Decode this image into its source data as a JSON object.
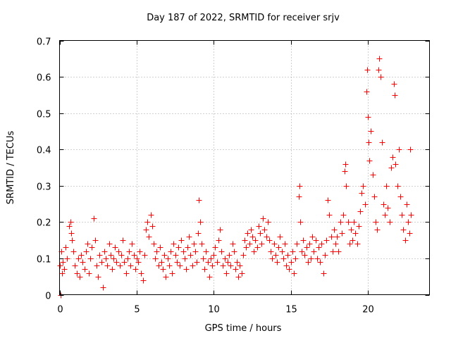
{
  "chart_data": {
    "type": "scatter",
    "title": "Day 187 of 2022, SRMTID for receiver srjv",
    "xlabel": "GPS time / hours",
    "ylabel": "SRMTID / TECUs",
    "xlim": [
      0,
      24
    ],
    "ylim": [
      0,
      0.7
    ],
    "xticks": [
      0,
      5,
      10,
      15,
      20
    ],
    "xtick_labels": [
      "0",
      "5",
      "10",
      "15",
      "20"
    ],
    "yticks": [
      0,
      0.1,
      0.2,
      0.3,
      0.4,
      0.5,
      0.6,
      0.7
    ],
    "ytick_labels": [
      "0",
      "0.1",
      "0.2",
      "0.3",
      "0.4",
      "0.5",
      "0.6",
      "0.7"
    ],
    "grid": true,
    "marker": "+",
    "color": "#ff0000",
    "series": [
      {
        "name": "SRMTID",
        "points": [
          [
            0.0,
            0.08
          ],
          [
            0.05,
            0.0
          ],
          [
            0.1,
            0.12
          ],
          [
            0.15,
            0.06
          ],
          [
            0.2,
            0.09
          ],
          [
            0.3,
            0.07
          ],
          [
            0.4,
            0.13
          ],
          [
            0.5,
            0.1
          ],
          [
            0.6,
            0.19
          ],
          [
            0.7,
            0.2
          ],
          [
            0.75,
            0.17
          ],
          [
            0.8,
            0.15
          ],
          [
            0.9,
            0.12
          ],
          [
            1.0,
            0.08
          ],
          [
            1.1,
            0.06
          ],
          [
            1.2,
            0.1
          ],
          [
            1.3,
            0.05
          ],
          [
            1.4,
            0.11
          ],
          [
            1.5,
            0.09
          ],
          [
            1.6,
            0.07
          ],
          [
            1.7,
            0.12
          ],
          [
            1.8,
            0.14
          ],
          [
            1.9,
            0.06
          ],
          [
            2.0,
            0.1
          ],
          [
            2.1,
            0.13
          ],
          [
            2.2,
            0.21
          ],
          [
            2.3,
            0.15
          ],
          [
            2.4,
            0.08
          ],
          [
            2.5,
            0.05
          ],
          [
            2.6,
            0.11
          ],
          [
            2.7,
            0.09
          ],
          [
            2.8,
            0.02
          ],
          [
            2.9,
            0.12
          ],
          [
            3.0,
            0.1
          ],
          [
            3.1,
            0.08
          ],
          [
            3.2,
            0.14
          ],
          [
            3.3,
            0.11
          ],
          [
            3.4,
            0.07
          ],
          [
            3.5,
            0.1
          ],
          [
            3.6,
            0.13
          ],
          [
            3.7,
            0.09
          ],
          [
            3.8,
            0.12
          ],
          [
            3.9,
            0.08
          ],
          [
            4.0,
            0.11
          ],
          [
            4.1,
            0.15
          ],
          [
            4.2,
            0.09
          ],
          [
            4.3,
            0.06
          ],
          [
            4.4,
            0.1
          ],
          [
            4.5,
            0.12
          ],
          [
            4.6,
            0.08
          ],
          [
            4.7,
            0.14
          ],
          [
            4.8,
            0.11
          ],
          [
            4.9,
            0.07
          ],
          [
            5.0,
            0.1
          ],
          [
            5.1,
            0.09
          ],
          [
            5.2,
            0.12
          ],
          [
            5.3,
            0.06
          ],
          [
            5.4,
            0.04
          ],
          [
            5.5,
            0.11
          ],
          [
            5.6,
            0.18
          ],
          [
            5.7,
            0.2
          ],
          [
            5.8,
            0.16
          ],
          [
            5.9,
            0.22
          ],
          [
            6.0,
            0.19
          ],
          [
            6.1,
            0.14
          ],
          [
            6.2,
            0.1
          ],
          [
            6.3,
            0.12
          ],
          [
            6.4,
            0.08
          ],
          [
            6.5,
            0.13
          ],
          [
            6.6,
            0.09
          ],
          [
            6.7,
            0.07
          ],
          [
            6.8,
            0.11
          ],
          [
            6.9,
            0.05
          ],
          [
            7.0,
            0.1
          ],
          [
            7.1,
            0.08
          ],
          [
            7.2,
            0.12
          ],
          [
            7.3,
            0.06
          ],
          [
            7.4,
            0.14
          ],
          [
            7.5,
            0.11
          ],
          [
            7.6,
            0.09
          ],
          [
            7.7,
            0.13
          ],
          [
            7.8,
            0.08
          ],
          [
            7.9,
            0.15
          ],
          [
            8.0,
            0.12
          ],
          [
            8.1,
            0.1
          ],
          [
            8.2,
            0.07
          ],
          [
            8.3,
            0.13
          ],
          [
            8.4,
            0.16
          ],
          [
            8.5,
            0.11
          ],
          [
            8.6,
            0.08
          ],
          [
            8.7,
            0.14
          ],
          [
            8.8,
            0.12
          ],
          [
            8.9,
            0.09
          ],
          [
            9.0,
            0.17
          ],
          [
            9.05,
            0.26
          ],
          [
            9.1,
            0.2
          ],
          [
            9.2,
            0.14
          ],
          [
            9.3,
            0.1
          ],
          [
            9.4,
            0.07
          ],
          [
            9.5,
            0.12
          ],
          [
            9.6,
            0.09
          ],
          [
            9.7,
            0.05
          ],
          [
            9.8,
            0.1
          ],
          [
            9.9,
            0.08
          ],
          [
            10.0,
            0.11
          ],
          [
            10.1,
            0.13
          ],
          [
            10.2,
            0.09
          ],
          [
            10.3,
            0.15
          ],
          [
            10.4,
            0.18
          ],
          [
            10.5,
            0.12
          ],
          [
            10.6,
            0.08
          ],
          [
            10.7,
            0.1
          ],
          [
            10.8,
            0.06
          ],
          [
            10.9,
            0.09
          ],
          [
            11.0,
            0.11
          ],
          [
            11.1,
            0.08
          ],
          [
            11.2,
            0.14
          ],
          [
            11.3,
            0.12
          ],
          [
            11.4,
            0.07
          ],
          [
            11.5,
            0.09
          ],
          [
            11.6,
            0.05
          ],
          [
            11.7,
            0.08
          ],
          [
            11.8,
            0.06
          ],
          [
            11.9,
            0.11
          ],
          [
            12.0,
            0.15
          ],
          [
            12.1,
            0.13
          ],
          [
            12.2,
            0.17
          ],
          [
            12.3,
            0.14
          ],
          [
            12.4,
            0.18
          ],
          [
            12.5,
            0.16
          ],
          [
            12.6,
            0.12
          ],
          [
            12.7,
            0.15
          ],
          [
            12.8,
            0.13
          ],
          [
            12.9,
            0.19
          ],
          [
            13.0,
            0.17
          ],
          [
            13.1,
            0.14
          ],
          [
            13.2,
            0.21
          ],
          [
            13.3,
            0.18
          ],
          [
            13.4,
            0.16
          ],
          [
            13.5,
            0.2
          ],
          [
            13.6,
            0.15
          ],
          [
            13.7,
            0.12
          ],
          [
            13.8,
            0.1
          ],
          [
            13.9,
            0.14
          ],
          [
            14.0,
            0.11
          ],
          [
            14.1,
            0.09
          ],
          [
            14.2,
            0.13
          ],
          [
            14.3,
            0.16
          ],
          [
            14.4,
            0.12
          ],
          [
            14.5,
            0.1
          ],
          [
            14.6,
            0.14
          ],
          [
            14.7,
            0.08
          ],
          [
            14.8,
            0.11
          ],
          [
            14.9,
            0.07
          ],
          [
            15.0,
            0.09
          ],
          [
            15.1,
            0.12
          ],
          [
            15.2,
            0.06
          ],
          [
            15.3,
            0.1
          ],
          [
            15.4,
            0.14
          ],
          [
            15.5,
            0.27
          ],
          [
            15.55,
            0.3
          ],
          [
            15.6,
            0.2
          ],
          [
            15.7,
            0.12
          ],
          [
            15.8,
            0.15
          ],
          [
            15.9,
            0.11
          ],
          [
            16.0,
            0.13
          ],
          [
            16.1,
            0.09
          ],
          [
            16.2,
            0.14
          ],
          [
            16.3,
            0.1
          ],
          [
            16.4,
            0.16
          ],
          [
            16.5,
            0.12
          ],
          [
            16.6,
            0.15
          ],
          [
            16.7,
            0.1
          ],
          [
            16.8,
            0.13
          ],
          [
            16.9,
            0.09
          ],
          [
            17.0,
            0.14
          ],
          [
            17.1,
            0.06
          ],
          [
            17.2,
            0.11
          ],
          [
            17.3,
            0.15
          ],
          [
            17.4,
            0.26
          ],
          [
            17.5,
            0.22
          ],
          [
            17.6,
            0.16
          ],
          [
            17.7,
            0.12
          ],
          [
            17.8,
            0.18
          ],
          [
            17.9,
            0.14
          ],
          [
            18.0,
            0.16
          ],
          [
            18.1,
            0.12
          ],
          [
            18.2,
            0.2
          ],
          [
            18.3,
            0.17
          ],
          [
            18.4,
            0.22
          ],
          [
            18.5,
            0.34
          ],
          [
            18.55,
            0.36
          ],
          [
            18.6,
            0.3
          ],
          [
            18.7,
            0.2
          ],
          [
            18.8,
            0.14
          ],
          [
            18.9,
            0.18
          ],
          [
            19.0,
            0.15
          ],
          [
            19.1,
            0.2
          ],
          [
            19.2,
            0.17
          ],
          [
            19.3,
            0.14
          ],
          [
            19.4,
            0.19
          ],
          [
            19.5,
            0.23
          ],
          [
            19.6,
            0.28
          ],
          [
            19.7,
            0.3
          ],
          [
            19.8,
            0.25
          ],
          [
            19.9,
            0.56
          ],
          [
            19.95,
            0.62
          ],
          [
            20.0,
            0.49
          ],
          [
            20.05,
            0.42
          ],
          [
            20.1,
            0.37
          ],
          [
            20.2,
            0.45
          ],
          [
            20.3,
            0.33
          ],
          [
            20.4,
            0.27
          ],
          [
            20.5,
            0.2
          ],
          [
            20.6,
            0.18
          ],
          [
            20.7,
            0.62
          ],
          [
            20.75,
            0.65
          ],
          [
            20.8,
            0.6
          ],
          [
            20.9,
            0.42
          ],
          [
            21.0,
            0.25
          ],
          [
            21.1,
            0.22
          ],
          [
            21.2,
            0.3
          ],
          [
            21.3,
            0.24
          ],
          [
            21.4,
            0.2
          ],
          [
            21.5,
            0.35
          ],
          [
            21.6,
            0.38
          ],
          [
            21.7,
            0.58
          ],
          [
            21.75,
            0.55
          ],
          [
            21.8,
            0.36
          ],
          [
            21.9,
            0.3
          ],
          [
            22.0,
            0.4
          ],
          [
            22.1,
            0.27
          ],
          [
            22.2,
            0.22
          ],
          [
            22.3,
            0.18
          ],
          [
            22.4,
            0.15
          ],
          [
            22.5,
            0.25
          ],
          [
            22.6,
            0.2
          ],
          [
            22.7,
            0.17
          ],
          [
            22.75,
            0.4
          ],
          [
            22.8,
            0.22
          ]
        ]
      }
    ]
  }
}
